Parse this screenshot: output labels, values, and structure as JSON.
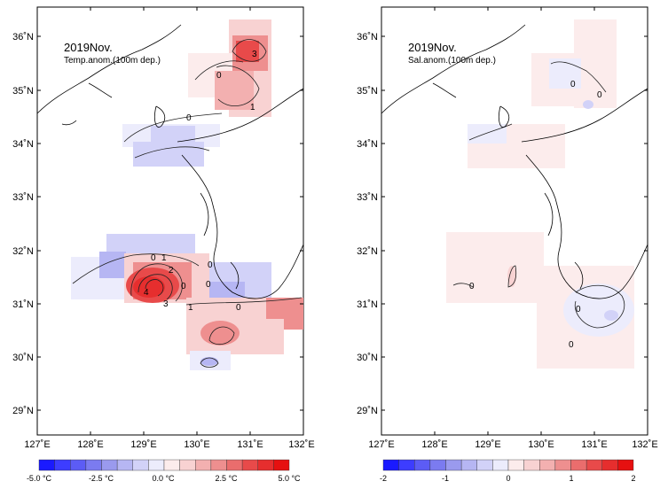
{
  "panels": [
    {
      "title": "2019Nov.",
      "subtitle": "Temp.anom.(100m dep.)",
      "x_ticks": [
        "127˚E",
        "128˚E",
        "129˚E",
        "130˚E",
        "131˚E",
        "132˚E"
      ],
      "y_ticks": [
        "36˚N",
        "35˚N",
        "34˚N",
        "33˚N",
        "32˚N",
        "31˚N",
        "30˚N",
        "29˚N"
      ],
      "colorbar_labels": [
        "-5.0 °C",
        "-2.5 °C",
        "0.0 °C",
        "2.5 °C",
        "5.0 °C"
      ],
      "contour_labels": [
        "3",
        "0",
        "1",
        "0",
        "0",
        "0",
        "1",
        "2",
        "4",
        "3",
        "0",
        "1",
        "0",
        "0"
      ]
    },
    {
      "title": "2019Nov.",
      "subtitle": "Sal.anom.(100m dep.)",
      "x_ticks": [
        "127˚E",
        "128˚E",
        "129˚E",
        "130˚E",
        "131˚E",
        "132˚E"
      ],
      "y_ticks": [
        "36˚N",
        "35˚N",
        "34˚N",
        "33˚N",
        "32˚N",
        "31˚N",
        "30˚N",
        "29˚N"
      ],
      "colorbar_labels": [
        "-2",
        "-1",
        "0",
        "1",
        "2"
      ],
      "contour_labels": [
        "0",
        "0",
        "0",
        "0",
        "0"
      ]
    }
  ],
  "colors": {
    "scale": [
      "#1a1aff",
      "#3d3dff",
      "#5c5cf5",
      "#7b7bf0",
      "#9a9aee",
      "#b6b6f3",
      "#d2d2f8",
      "#ececfc",
      "#fcecec",
      "#f8d2d2",
      "#f3b0b0",
      "#ee8f8f",
      "#ea6d6d",
      "#e84a4a",
      "#e62e2e",
      "#e61010"
    ],
    "land_outline": "#000000"
  },
  "map": {
    "lon_range": [
      127,
      132
    ],
    "lat_range": [
      28.5,
      36.5
    ]
  }
}
